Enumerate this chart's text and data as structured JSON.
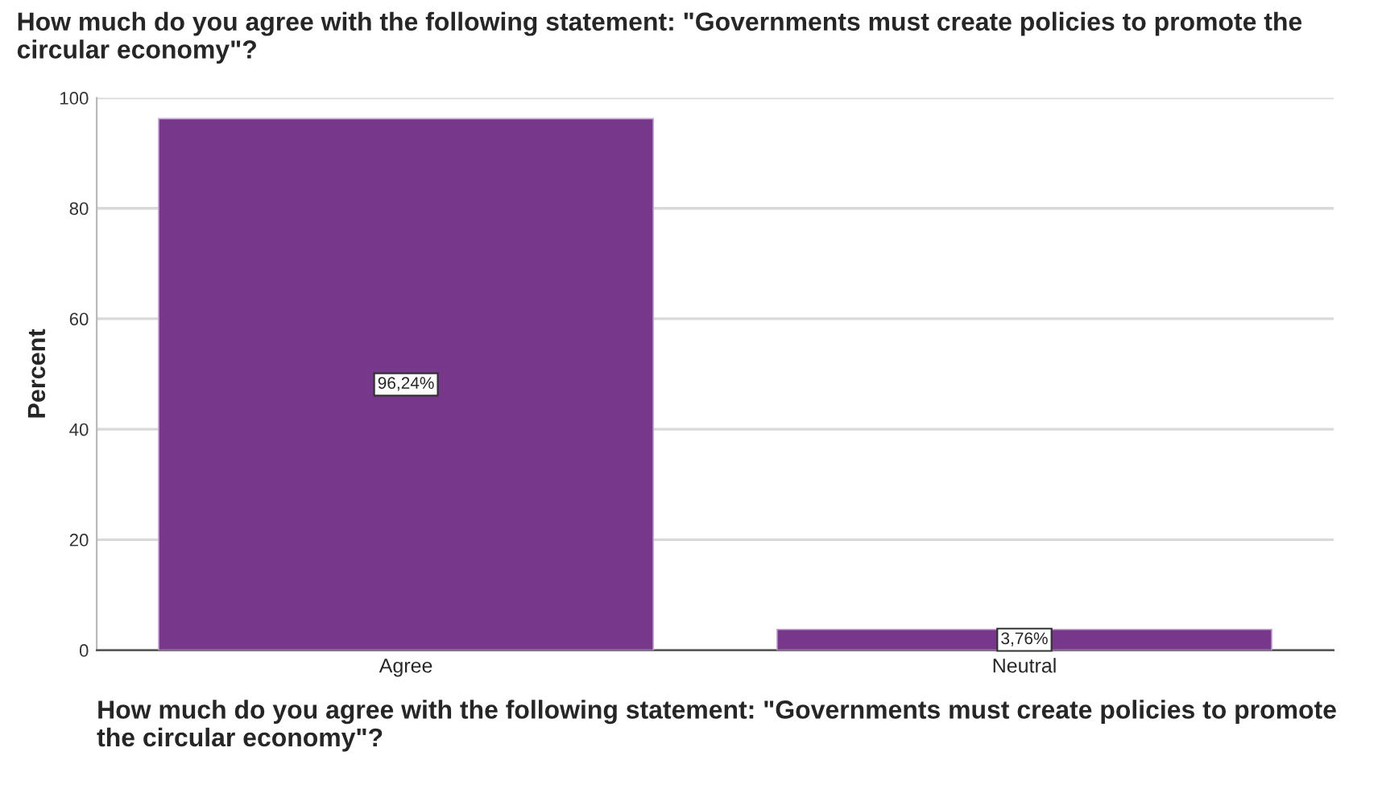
{
  "chart_data": {
    "type": "bar",
    "title": "How much do you agree with the following statement: \"Governments must create policies to promote the circular economy\"?",
    "xlabel": "How much do you agree with the following statement: \"Governments must create policies to promote the circular economy\"?",
    "ylabel": "Percent",
    "categories": [
      "Agree",
      "Neutral"
    ],
    "values": [
      96.24,
      3.76
    ],
    "value_labels": [
      "96,24%",
      "3,76%"
    ],
    "color": "#77378b",
    "ylim": [
      0,
      100
    ],
    "yticks": [
      0,
      20,
      40,
      60,
      80,
      100
    ],
    "grid": "y"
  }
}
